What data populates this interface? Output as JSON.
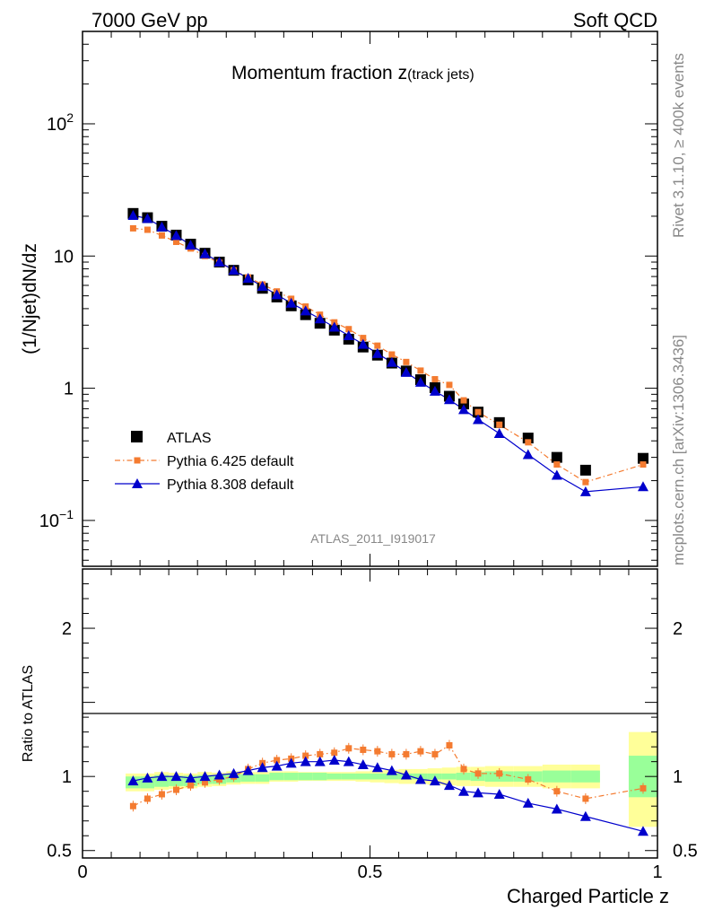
{
  "header": {
    "energy_label": "7000 GeV pp",
    "category_label": "Soft QCD"
  },
  "side_labels": {
    "rivet": "Rivet 3.1.10, ≥ 400k events",
    "source": "mcplots.cern.ch [arXiv:1306.3436]"
  },
  "analysis_label": "ATLAS_2011_I919017",
  "colors": {
    "atlas": "#000000",
    "pythia6": "#f47b30",
    "pythia8": "#0000cc",
    "band_inner": "#99ff99",
    "band_outer": "#ffff99"
  },
  "chart_data": [
    {
      "type": "scatter",
      "title": "Momentum fraction z",
      "title_sub": "(track jets)",
      "ylabel": "(1/Njet)dN/dz",
      "xlabel": "",
      "y_scale": "log",
      "ylim": [
        0.045,
        500
      ],
      "xlim": [
        0,
        1
      ],
      "y_ticks": [
        {
          "value": 0.1,
          "label": "10",
          "exp": "−1"
        },
        {
          "value": 1,
          "label": "1",
          "exp": ""
        },
        {
          "value": 10,
          "label": "10",
          "exp": ""
        },
        {
          "value": 100,
          "label": "10",
          "exp": "2"
        }
      ],
      "legend_position": "bottom-left",
      "x": [
        0.088,
        0.113,
        0.138,
        0.163,
        0.188,
        0.213,
        0.238,
        0.263,
        0.288,
        0.313,
        0.338,
        0.363,
        0.388,
        0.413,
        0.438,
        0.463,
        0.488,
        0.513,
        0.538,
        0.563,
        0.588,
        0.613,
        0.638,
        0.663,
        0.688,
        0.725,
        0.775,
        0.825,
        0.875,
        0.975
      ],
      "series": [
        {
          "name": "ATLAS",
          "marker": "square",
          "values": [
            21.0,
            19.5,
            16.8,
            14.4,
            12.3,
            10.5,
            9.0,
            7.8,
            6.6,
            5.7,
            4.9,
            4.2,
            3.6,
            3.1,
            2.75,
            2.35,
            2.05,
            1.78,
            1.55,
            1.35,
            1.16,
            1.01,
            0.87,
            0.76,
            0.66,
            0.55,
            0.42,
            0.3,
            0.24,
            0.295
          ]
        },
        {
          "name": "Pythia 6.425 default",
          "marker": "small-square",
          "line": "dash-dot",
          "values": [
            16.2,
            15.8,
            14.3,
            12.8,
            11.4,
            10.0,
            8.9,
            7.8,
            6.9,
            6.1,
            5.4,
            4.75,
            4.15,
            3.6,
            3.15,
            2.8,
            2.4,
            2.1,
            1.8,
            1.58,
            1.36,
            1.17,
            1.06,
            0.81,
            0.66,
            0.53,
            0.39,
            0.265,
            0.195,
            0.265
          ]
        },
        {
          "name": "Pythia 8.308 default",
          "marker": "triangle",
          "line": "solid",
          "values": [
            20.3,
            19.2,
            16.6,
            14.3,
            12.1,
            10.4,
            9.0,
            7.8,
            6.8,
            5.9,
            5.1,
            4.4,
            3.85,
            3.35,
            2.9,
            2.5,
            2.15,
            1.83,
            1.57,
            1.32,
            1.11,
            0.95,
            0.82,
            0.69,
            0.58,
            0.455,
            0.315,
            0.22,
            0.165,
            0.18
          ]
        }
      ]
    },
    {
      "type": "line",
      "title": "",
      "xlabel": "Charged Particle z",
      "ylabel": "Ratio to ATLAS",
      "ylim": [
        0.45,
        2.4
      ],
      "xlim": [
        0,
        1
      ],
      "x_ticks": [
        {
          "value": 0,
          "label": "0"
        },
        {
          "value": 0.5,
          "label": "0.5"
        },
        {
          "value": 1,
          "label": "1"
        }
      ],
      "y_ticks": [
        {
          "value": 0.5,
          "label": "0.5"
        },
        {
          "value": 1,
          "label": "1"
        },
        {
          "value": 2,
          "label": "2"
        }
      ],
      "x": [
        0.088,
        0.113,
        0.138,
        0.163,
        0.188,
        0.213,
        0.238,
        0.263,
        0.288,
        0.313,
        0.338,
        0.363,
        0.388,
        0.413,
        0.438,
        0.463,
        0.488,
        0.513,
        0.538,
        0.563,
        0.588,
        0.613,
        0.638,
        0.663,
        0.688,
        0.725,
        0.775,
        0.825,
        0.875,
        0.975
      ],
      "bands": {
        "bins": [
          [
            0.075,
            0.1
          ],
          [
            0.1,
            0.125
          ],
          [
            0.125,
            0.15
          ],
          [
            0.15,
            0.175
          ],
          [
            0.175,
            0.2
          ],
          [
            0.2,
            0.225
          ],
          [
            0.225,
            0.25
          ],
          [
            0.25,
            0.275
          ],
          [
            0.275,
            0.3
          ],
          [
            0.3,
            0.325
          ],
          [
            0.325,
            0.35
          ],
          [
            0.35,
            0.375
          ],
          [
            0.375,
            0.4
          ],
          [
            0.4,
            0.425
          ],
          [
            0.425,
            0.45
          ],
          [
            0.45,
            0.475
          ],
          [
            0.475,
            0.5
          ],
          [
            0.5,
            0.525
          ],
          [
            0.525,
            0.55
          ],
          [
            0.55,
            0.575
          ],
          [
            0.575,
            0.6
          ],
          [
            0.6,
            0.625
          ],
          [
            0.625,
            0.65
          ],
          [
            0.65,
            0.675
          ],
          [
            0.675,
            0.7
          ],
          [
            0.7,
            0.75
          ],
          [
            0.75,
            0.8
          ],
          [
            0.8,
            0.85
          ],
          [
            0.85,
            0.9
          ],
          [
            0.95,
            1.0
          ]
        ],
        "inner": [
          0.04,
          0.04,
          0.04,
          0.035,
          0.035,
          0.03,
          0.03,
          0.03,
          0.025,
          0.025,
          0.025,
          0.025,
          0.025,
          0.025,
          0.02,
          0.02,
          0.02,
          0.02,
          0.02,
          0.02,
          0.02,
          0.02,
          0.02,
          0.025,
          0.03,
          0.035,
          0.035,
          0.04,
          0.04,
          0.14
        ],
        "outer": [
          0.06,
          0.06,
          0.06,
          0.055,
          0.05,
          0.05,
          0.045,
          0.045,
          0.04,
          0.04,
          0.035,
          0.035,
          0.03,
          0.03,
          0.03,
          0.03,
          0.035,
          0.04,
          0.045,
          0.05,
          0.05,
          0.055,
          0.06,
          0.065,
          0.065,
          0.07,
          0.07,
          0.08,
          0.08,
          0.3
        ],
        "offset": [
          -0.04,
          -0.04,
          -0.03,
          -0.03,
          -0.03,
          -0.02,
          -0.02,
          -0.01,
          -0.01,
          -0.01,
          0.0,
          0.0,
          0.0,
          0.0,
          0.0,
          0.0,
          0.0,
          0.0,
          0.0,
          0.0,
          0.0,
          0.0,
          0.0,
          0.0,
          0.0,
          0.0,
          0.0,
          0.0,
          0.0,
          0.0
        ]
      },
      "series": [
        {
          "name": "Pythia 6.425 default",
          "values": [
            0.8,
            0.85,
            0.88,
            0.91,
            0.94,
            0.96,
            0.98,
            1.0,
            1.05,
            1.09,
            1.11,
            1.12,
            1.14,
            1.15,
            1.16,
            1.19,
            1.18,
            1.17,
            1.15,
            1.15,
            1.17,
            1.15,
            1.21,
            1.05,
            1.02,
            1.02,
            0.98,
            0.9,
            0.85,
            0.92
          ]
        },
        {
          "name": "Pythia 8.308 default",
          "values": [
            0.97,
            0.99,
            1.0,
            1.0,
            0.99,
            1.0,
            1.01,
            1.02,
            1.04,
            1.06,
            1.07,
            1.09,
            1.1,
            1.1,
            1.11,
            1.1,
            1.08,
            1.06,
            1.04,
            1.01,
            0.98,
            0.97,
            0.94,
            0.9,
            0.89,
            0.88,
            0.82,
            0.78,
            0.73,
            0.63
          ]
        }
      ]
    }
  ]
}
